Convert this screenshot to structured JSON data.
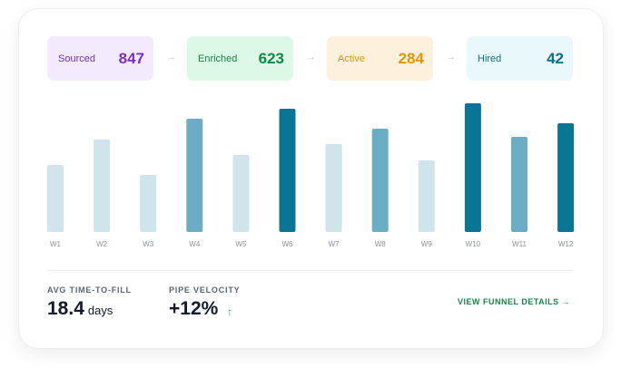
{
  "funnel": [
    {
      "label": "Sourced",
      "value": 847,
      "bg": "#f3ebfd",
      "color": "#7b2fbf"
    },
    {
      "label": "Enriched",
      "value": 623,
      "bg": "#dcf8e6",
      "color": "#12894a"
    },
    {
      "label": "Active",
      "value": 284,
      "bg": "#fdf0dc",
      "color": "#e0950e"
    },
    {
      "label": "Hired",
      "value": 42,
      "bg": "#e9f8fb",
      "color": "#0b6f8c"
    }
  ],
  "chart_data": {
    "type": "bar",
    "categories": [
      "W1",
      "W2",
      "W3",
      "W4",
      "W5",
      "W6",
      "W7",
      "W8",
      "W9",
      "W10",
      "W11",
      "W12"
    ],
    "values": [
      74,
      102,
      63,
      125,
      85,
      136,
      97,
      114,
      79,
      142,
      105,
      120
    ],
    "colors": [
      "#cfe5eb",
      "#cfe5eb",
      "#cfe5eb",
      "#6aaec5",
      "#cfe5eb",
      "#0b7594",
      "#cfe5eb",
      "#6aaec5",
      "#cfe5eb",
      "#0b7594",
      "#6aaec5",
      "#0b7594"
    ]
  },
  "metrics": [
    {
      "label": "AVG TIME-TO-FILL",
      "value": 18.4,
      "unit": "days"
    },
    {
      "label": "PIPE VELOCITY",
      "value": "+12%"
    }
  ],
  "link": "VIEW FUNNEL DETAILS →"
}
